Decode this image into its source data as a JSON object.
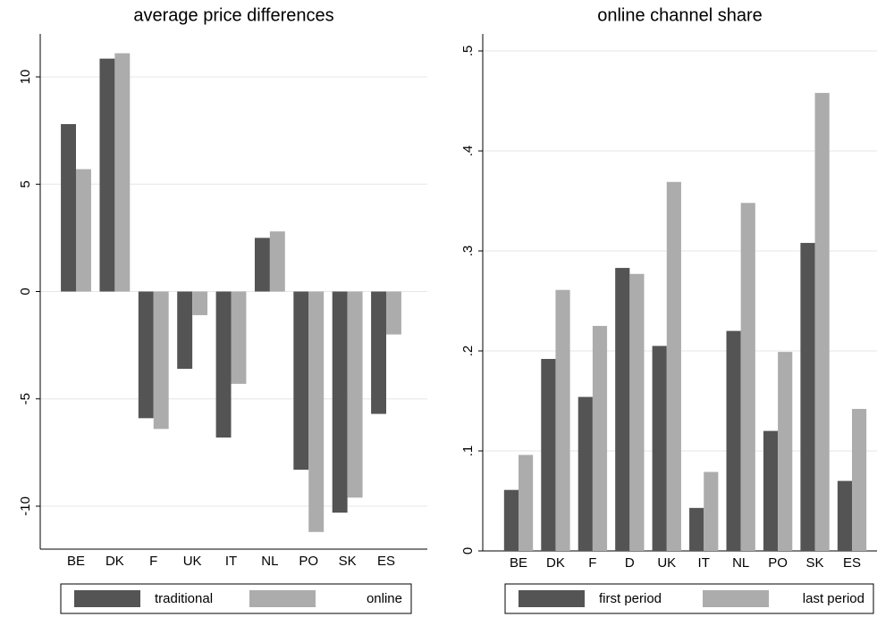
{
  "chart_data": [
    {
      "type": "bar",
      "title": "average price differences",
      "categories": [
        "BE",
        "DK",
        "F",
        "UK",
        "IT",
        "NL",
        "PO",
        "SK",
        "ES"
      ],
      "series": [
        {
          "name": "traditional",
          "color": "#545454",
          "values": [
            7.8,
            10.85,
            -5.9,
            -3.6,
            -6.8,
            2.5,
            -8.3,
            -10.3,
            -5.7
          ]
        },
        {
          "name": "online",
          "color": "#acacac",
          "values": [
            5.7,
            11.1,
            -6.4,
            -1.1,
            -4.3,
            2.8,
            -11.2,
            -9.6,
            -2.0
          ]
        }
      ],
      "ylim": [
        -12,
        12
      ],
      "yticks": [
        -10,
        -5,
        0,
        5,
        10
      ],
      "grid": true
    },
    {
      "type": "bar",
      "title": "online channel share",
      "categories": [
        "BE",
        "DK",
        "F",
        "D",
        "UK",
        "IT",
        "NL",
        "PO",
        "SK",
        "ES"
      ],
      "series": [
        {
          "name": "first period",
          "color": "#545454",
          "values": [
            0.061,
            0.192,
            0.154,
            0.283,
            0.205,
            0.043,
            0.22,
            0.12,
            0.308,
            0.07
          ]
        },
        {
          "name": "last period",
          "color": "#acacac",
          "values": [
            0.096,
            0.261,
            0.225,
            0.277,
            0.369,
            0.079,
            0.348,
            0.199,
            0.458,
            0.142
          ]
        }
      ],
      "ylim": [
        0,
        0.517
      ],
      "yticks": [
        0,
        {
          "value": 0.1,
          "label": ".1"
        },
        {
          "value": 0.2,
          "label": ".2"
        },
        {
          "value": 0.3,
          "label": ".3"
        },
        {
          "value": 0.4,
          "label": ".4"
        },
        {
          "value": 0.5,
          "label": ".5"
        }
      ],
      "grid": true
    }
  ]
}
